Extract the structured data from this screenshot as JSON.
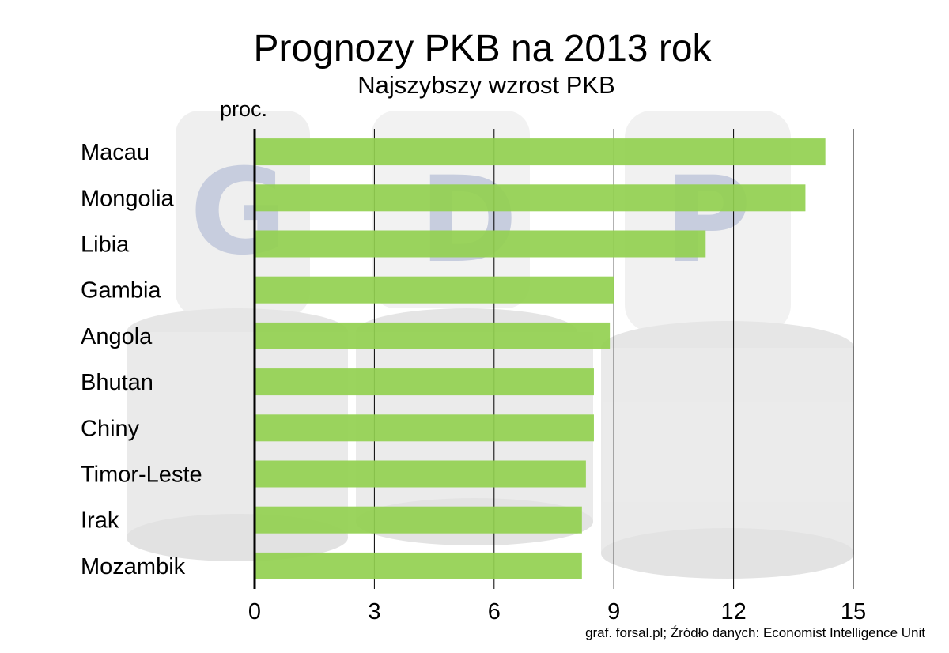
{
  "title": "Prognozy PKB na 2013 rok",
  "subtitle": "Najszybszy wzrost PKB",
  "source": "graf. forsal.pl; Źródło danych: Economist Intelligence Unit",
  "colors": {
    "bar": "#92d050"
  },
  "chart_data": {
    "type": "bar",
    "orientation": "horizontal",
    "unit_label": "proc.",
    "categories": [
      "Macau",
      "Mongolia",
      "Libia",
      "Gambia",
      "Angola",
      "Bhutan",
      "Chiny",
      "Timor-Leste",
      "Irak",
      "Mozambik"
    ],
    "values": [
      14.3,
      13.8,
      11.3,
      9.0,
      8.9,
      8.5,
      8.5,
      8.3,
      8.2,
      8.2
    ],
    "xlim": [
      0,
      15
    ],
    "xticks": [
      0,
      3,
      6,
      9,
      12,
      15
    ],
    "grid": true,
    "legend": "none"
  }
}
